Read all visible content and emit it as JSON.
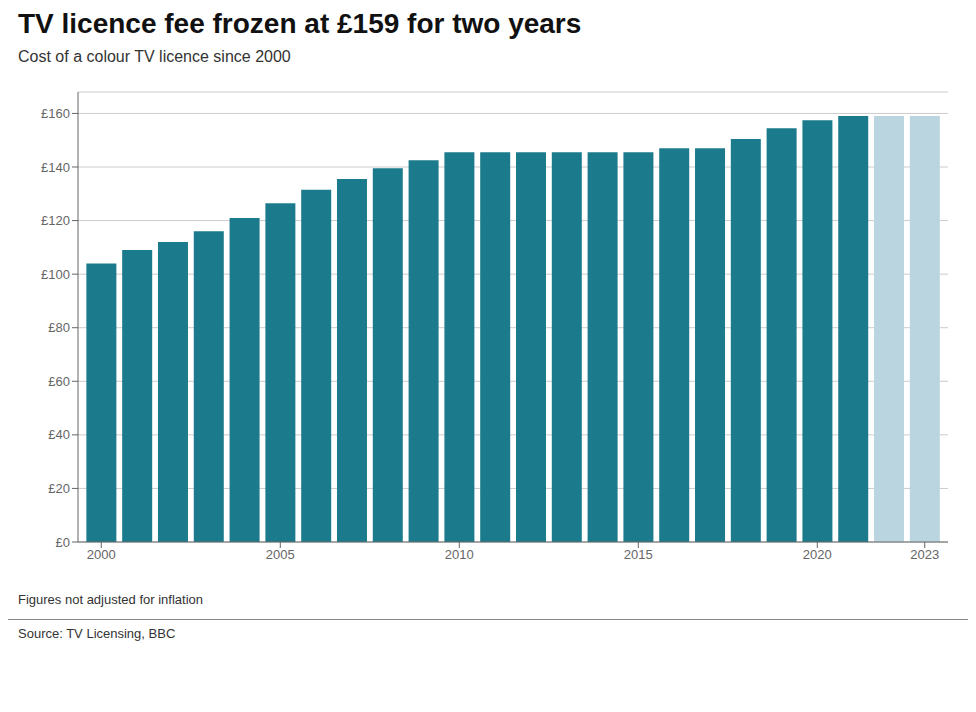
{
  "chart_data": {
    "type": "bar",
    "title": "TV licence fee frozen at £159 for two years",
    "subtitle": "Cost of a colour TV licence since 2000",
    "annotations": [
      "Figures not adjusted for inflation",
      "Source: TV Licensing, BBC"
    ],
    "x": [
      2000,
      2001,
      2002,
      2003,
      2004,
      2005,
      2006,
      2007,
      2008,
      2009,
      2010,
      2011,
      2012,
      2013,
      2014,
      2015,
      2016,
      2017,
      2018,
      2019,
      2020,
      2021,
      2022,
      2023
    ],
    "values": [
      104,
      109,
      112,
      116,
      121,
      126.5,
      131.5,
      135.5,
      139.5,
      142.5,
      145.5,
      145.5,
      145.5,
      145.5,
      145.5,
      145.5,
      147,
      147,
      150.5,
      154.5,
      157.5,
      159,
      159,
      159
    ],
    "colors": [
      "#1b7b8c",
      "#1b7b8c",
      "#1b7b8c",
      "#1b7b8c",
      "#1b7b8c",
      "#1b7b8c",
      "#1b7b8c",
      "#1b7b8c",
      "#1b7b8c",
      "#1b7b8c",
      "#1b7b8c",
      "#1b7b8c",
      "#1b7b8c",
      "#1b7b8c",
      "#1b7b8c",
      "#1b7b8c",
      "#1b7b8c",
      "#1b7b8c",
      "#1b7b8c",
      "#1b7b8c",
      "#1b7b8c",
      "#1b7b8c",
      "#bad5e0",
      "#bad5e0"
    ],
    "xlim": [
      1999.35,
      2023.65
    ],
    "xticks": [
      2000,
      2005,
      2010,
      2015,
      2020,
      2023
    ],
    "ylim": [
      0,
      168
    ],
    "yticks": [
      {
        "value": 0,
        "label": "£0"
      },
      {
        "value": 20,
        "label": "£20"
      },
      {
        "value": 40,
        "label": "£40"
      },
      {
        "value": 60,
        "label": "£60"
      },
      {
        "value": 80,
        "label": "£80"
      },
      {
        "value": 100,
        "label": "£100"
      },
      {
        "value": 120,
        "label": "£120"
      },
      {
        "value": 140,
        "label": "£140"
      },
      {
        "value": 160,
        "label": "£160"
      }
    ],
    "grid": true
  }
}
